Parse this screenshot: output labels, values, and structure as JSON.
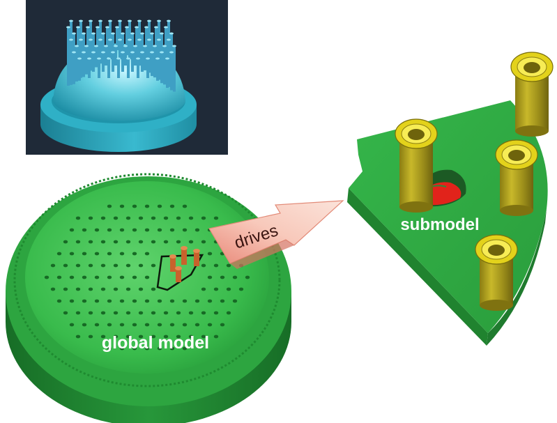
{
  "labels": {
    "global": "global model",
    "drives": "drives",
    "submodel": "submodel"
  },
  "colors": {
    "render_bg": "#1f2a38",
    "cad_teal": "#27a9c0",
    "cad_light": "#7fe0ee",
    "model_green": "#2fae46",
    "model_green_light": "#4cc95e",
    "model_green_dark": "#1b7a2c",
    "arrow_pink": "#f6b7a9",
    "stud_yellow": "#f2e21a",
    "stud_olive": "#b3a31f",
    "stud_orange": "#c8622c",
    "damage_red": "#e1231b",
    "label_white": "#ffffff"
  }
}
